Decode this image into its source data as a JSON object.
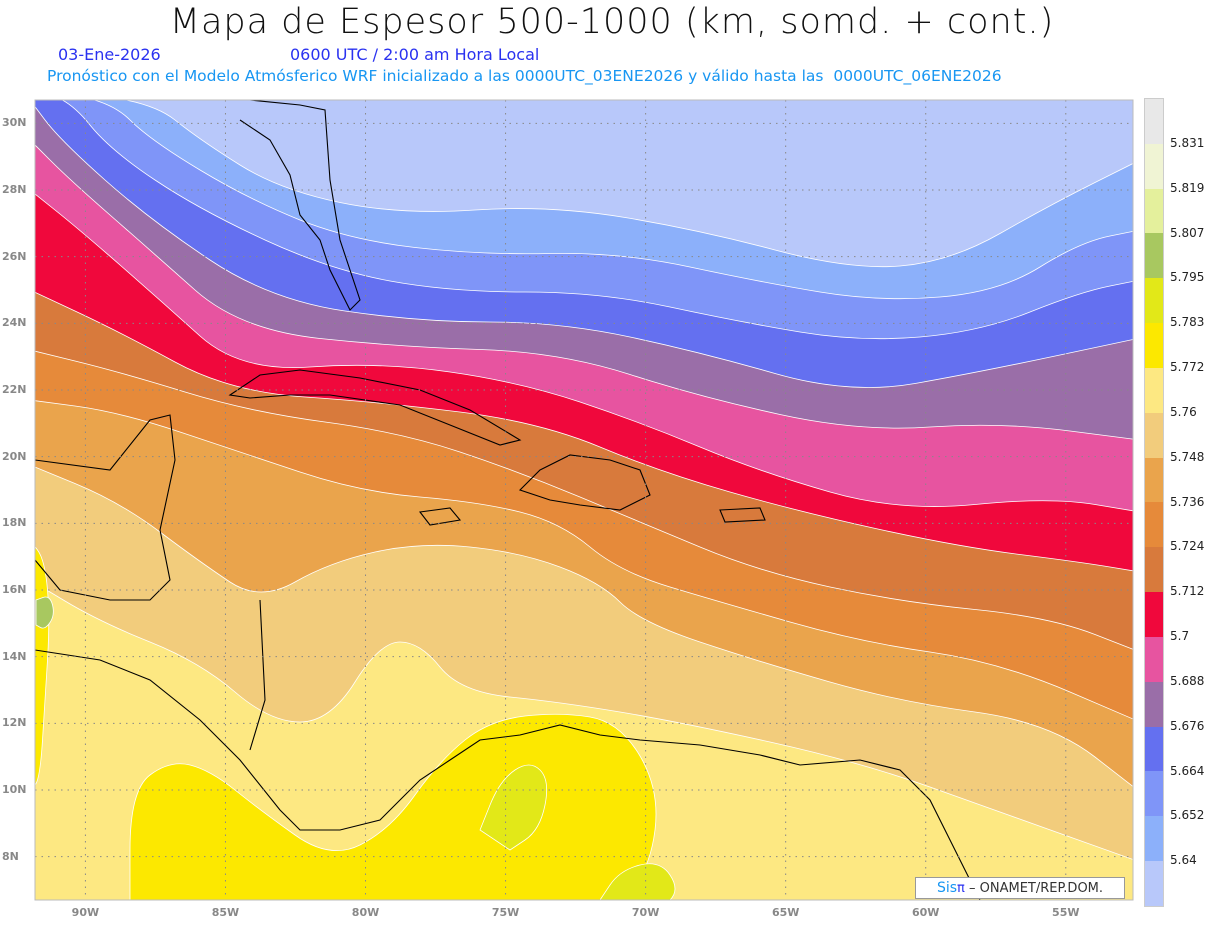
{
  "header": {
    "title": "Mapa de Espesor 500-1000 (km, somd. + cont.)",
    "date": "03-Ene-2026",
    "time": "0600 UTC / 2:00 am Hora Local",
    "description": "Pronóstico con el Modelo Atmósferico WRF inicializado a las 0000UTC_03ENE2026 y válido hasta las  0000UTC_06ENE2026"
  },
  "credit": {
    "brand": "Sis",
    "pi": "π",
    "org": " – ONAMET/REP.DOM."
  },
  "axes": {
    "lat_labels": [
      "30N",
      "28N",
      "26N",
      "24N",
      "22N",
      "20N",
      "18N",
      "16N",
      "14N",
      "12N",
      "10N",
      "8N"
    ],
    "lon_labels": [
      "90W",
      "85W",
      "80W",
      "75W",
      "70W",
      "65W",
      "60W",
      "55W"
    ],
    "lat_range": [
      6.7,
      30.7
    ],
    "lon_range": [
      -91.8,
      -52.6
    ]
  },
  "colorbar": {
    "labels": [
      "5.831",
      "5.819",
      "5.807",
      "5.795",
      "5.783",
      "5.772",
      "5.76",
      "5.748",
      "5.736",
      "5.724",
      "5.712",
      "5.7",
      "5.688",
      "5.676",
      "5.664",
      "5.652",
      "5.64"
    ],
    "colors": [
      "#e8e8e8",
      "#f0f4d4",
      "#e4f09c",
      "#a8c860",
      "#e2e818",
      "#fce800",
      "#fde882",
      "#f2cc7c",
      "#eaa44c",
      "#e68a3a",
      "#d87a3c",
      "#f0083c",
      "#e754a0",
      "#9a6ea8",
      "#6470f0",
      "#7f95f8",
      "#8cb0fa",
      "#b8c8fa"
    ]
  }
}
